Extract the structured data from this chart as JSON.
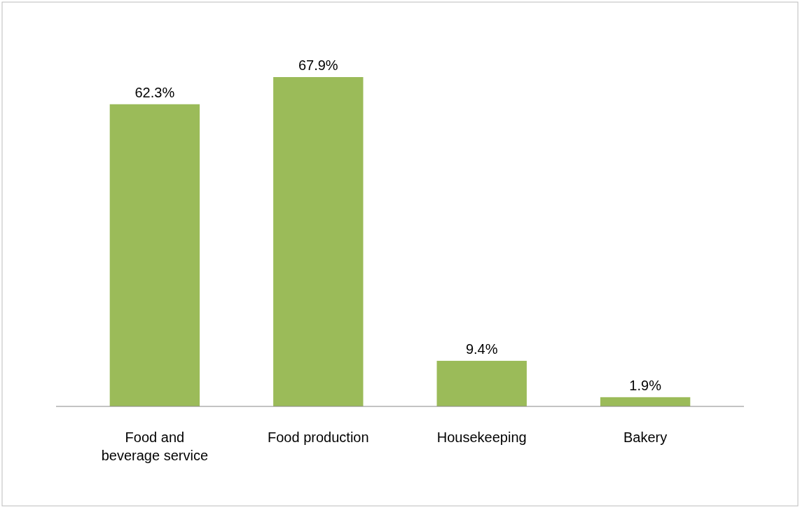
{
  "chart_data": {
    "type": "bar",
    "categories": [
      "Food and beverage service",
      "Food production",
      "Housekeeping",
      "Bakery"
    ],
    "values": [
      62.3,
      67.9,
      9.4,
      1.9
    ],
    "value_labels": [
      "62.3%",
      "67.9%",
      "9.4%",
      "1.9%"
    ],
    "color": "#9bbb59"
  }
}
